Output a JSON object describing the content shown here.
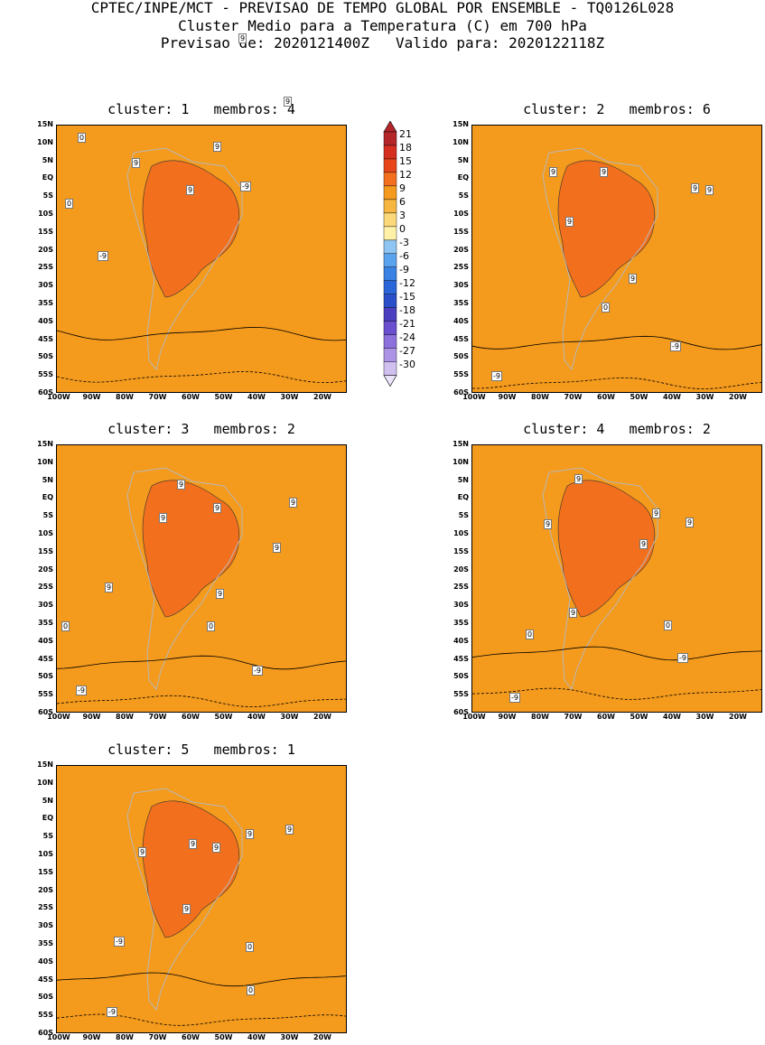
{
  "header": {
    "line1": "CPTEC/INPE/MCT - PREVISAO DE TEMPO GLOBAL POR ENSEMBLE - TQ0126L028",
    "line2": "Cluster Medio para a Temperatura (C) em 700 hPa",
    "line3": "Previsao de: 2020121400Z   Valido para: 2020122118Z"
  },
  "legend": {
    "values": [
      "21",
      "18",
      "15",
      "12",
      "9",
      "6",
      "3",
      "0",
      "-3",
      "-6",
      "-9",
      "-12",
      "-15",
      "-18",
      "-21",
      "-24",
      "-27",
      "-30"
    ],
    "colors": [
      "#b3262a",
      "#d42f1f",
      "#e8461a",
      "#f2701d",
      "#f49a1c",
      "#f6b640",
      "#fbd97a",
      "#fff1a8",
      "#8ec5f3",
      "#5aa3ef",
      "#3a82e3",
      "#2a66d9",
      "#2b4fc8",
      "#4c3fbf",
      "#6a4fcf",
      "#8c70dc",
      "#ad93e6",
      "#d0c0f0"
    ]
  },
  "axes": {
    "lat_ticks": [
      "15N",
      "10N",
      "5N",
      "EQ",
      "5S",
      "10S",
      "15S",
      "20S",
      "25S",
      "30S",
      "35S",
      "40S",
      "45S",
      "50S",
      "55S",
      "60S"
    ],
    "lon_ticks": [
      "100W",
      "90W",
      "80W",
      "70W",
      "60W",
      "50W",
      "40W",
      "30W",
      "20W"
    ]
  },
  "panels": [
    {
      "title": "cluster: 1   membros: 4",
      "labels": [
        "9",
        "9",
        "9",
        "9",
        "9",
        "0",
        "0",
        "-9",
        "-9"
      ]
    },
    {
      "title": "cluster: 2   membros: 6",
      "labels": [
        "9",
        "9",
        "9",
        "9",
        "9",
        "9",
        "0",
        "-9",
        "-9"
      ]
    },
    {
      "title": "cluster: 3   membros: 2",
      "labels": [
        "9",
        "9",
        "9",
        "9",
        "9",
        "9",
        "9",
        "0",
        "0",
        "-9",
        "-9"
      ]
    },
    {
      "title": "cluster: 4   membros: 2",
      "labels": [
        "9",
        "9",
        "9",
        "9",
        "9",
        "9",
        "0",
        "0",
        "-9",
        "-9"
      ]
    },
    {
      "title": "cluster: 5   membros: 1",
      "labels": [
        "9",
        "9",
        "9",
        "9",
        "9",
        "9",
        "9",
        "0",
        "0",
        "-9",
        "-9"
      ]
    }
  ]
}
